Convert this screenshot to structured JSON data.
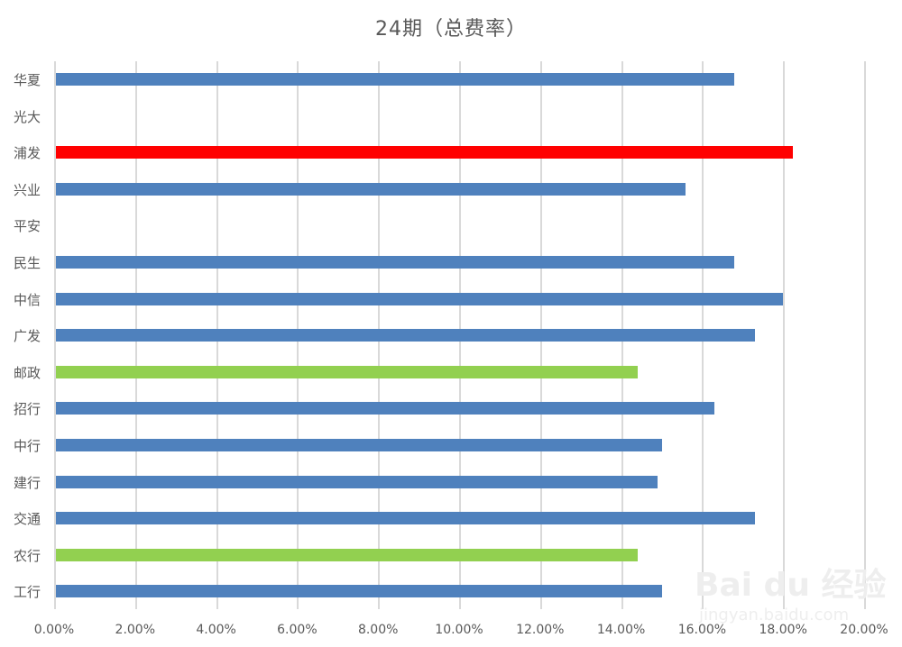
{
  "chart_data": {
    "type": "bar",
    "orientation": "horizontal",
    "title": "24期（总费率）",
    "xlabel": "",
    "ylabel": "",
    "xlim": [
      0,
      0.2
    ],
    "x_ticks": [
      "0.00%",
      "2.00%",
      "4.00%",
      "6.00%",
      "8.00%",
      "10.00%",
      "12.00%",
      "14.00%",
      "16.00%",
      "18.00%",
      "20.00%"
    ],
    "grid": true,
    "legend": null,
    "categories": [
      "华夏",
      "光大",
      "浦发",
      "兴业",
      "平安",
      "民生",
      "中信",
      "广发",
      "邮政",
      "招行",
      "中行",
      "建行",
      "交通",
      "农行",
      "工行"
    ],
    "values": [
      0.168,
      null,
      0.1824,
      0.156,
      null,
      0.168,
      0.18,
      0.173,
      0.144,
      0.163,
      0.15,
      0.149,
      0.173,
      0.144,
      0.15
    ],
    "bar_colors": [
      "#4f81bd",
      null,
      "#ff0000",
      "#4f81bd",
      null,
      "#4f81bd",
      "#4f81bd",
      "#4f81bd",
      "#92d050",
      "#4f81bd",
      "#4f81bd",
      "#4f81bd",
      "#4f81bd",
      "#92d050",
      "#4f81bd"
    ]
  },
  "colors": {
    "default": "#4f81bd",
    "highlight": "#ff0000",
    "secondary": "#92d050"
  },
  "watermark": {
    "logo": "Bai du 经验",
    "url": "jingyan.baidu.com"
  }
}
